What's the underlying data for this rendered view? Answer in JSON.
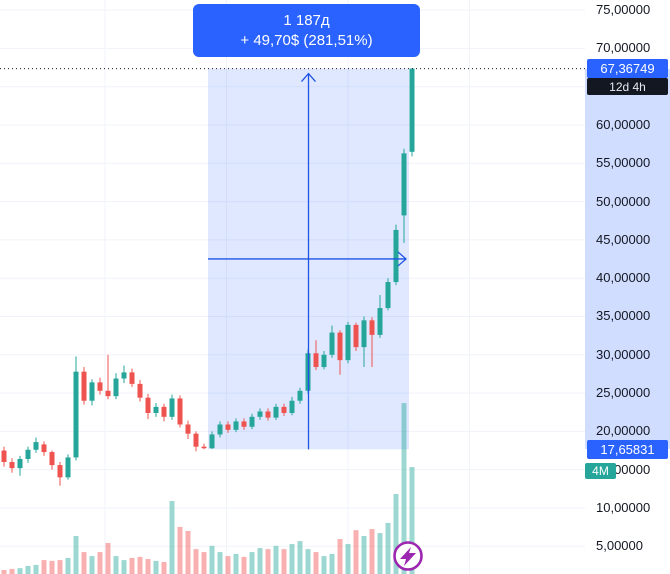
{
  "colors": {
    "up": "#26a69a",
    "down": "#ef5350",
    "vol_up": "rgba(38,166,154,0.45)",
    "vol_down": "rgba(239,83,80,0.45)",
    "accent": "#2962ff",
    "measure_fill": "rgba(41,98,255,0.15)",
    "measure_line": "#1e53e5",
    "grid": "#f0f3fa",
    "axis_text": "#131722",
    "last_price_line": "#131722",
    "countdown_bg": "#131722",
    "volume_badge_bg": "#26a69a",
    "flash_purple": "#9c27b0"
  },
  "tooltip": {
    "line1": "1 187д",
    "line2": "+ 49,70$ (281,51%)"
  },
  "price_axis": {
    "labels": [
      "75,00000",
      "70,00000",
      "65,00000",
      "60,00000",
      "55,00000",
      "50,00000",
      "45,00000",
      "40,00000",
      "35,00000",
      "30,00000",
      "25,00000",
      "20,00000",
      "15,00000",
      "10,00000",
      "5,00000"
    ],
    "values": [
      75,
      70,
      65,
      60,
      55,
      50,
      45,
      40,
      35,
      30,
      25,
      20,
      15,
      10,
      5
    ],
    "last_price_badge": {
      "text": "67,36749",
      "value": 67.36749
    },
    "countdown_badge": {
      "text": "12d 4h"
    },
    "measure_badge": {
      "text": "17,65831",
      "value": 17.65831
    },
    "volume_badge": {
      "text": "4M",
      "value_m": 4.0,
      "anchor_price": 15
    }
  },
  "measure_tool": {
    "from_price": 17.65831,
    "to_price": 67.36749,
    "bars_label": "1 187д",
    "change_label": "+ 49,70$ (281,51%)"
  },
  "chart_data": {
    "type": "candlestick+volume",
    "title": "",
    "grid": true,
    "ylim": [
      1.38,
      76.32
    ],
    "x_start": 4,
    "x_step": 8,
    "vertical_gridlines_x": [
      105,
      226.5,
      348,
      469.5
    ],
    "last_price": 67.36749,
    "candles": [
      [
        17.5,
        18.0,
        15.4,
        16.0
      ],
      [
        16.0,
        16.5,
        14.6,
        15.2
      ],
      [
        15.2,
        16.8,
        14.2,
        16.4
      ],
      [
        16.4,
        18.0,
        15.9,
        17.6
      ],
      [
        17.6,
        19.2,
        17.2,
        18.6
      ],
      [
        18.3,
        18.7,
        16.8,
        17.3
      ],
      [
        17.3,
        17.5,
        15.0,
        15.6
      ],
      [
        15.6,
        16.0,
        12.9,
        14.0
      ],
      [
        14.0,
        17.0,
        13.7,
        16.6
      ],
      [
        16.6,
        29.8,
        16.2,
        27.8
      ],
      [
        27.8,
        28.4,
        23.5,
        24.0
      ],
      [
        24.0,
        26.8,
        23.4,
        26.4
      ],
      [
        26.4,
        27.0,
        24.8,
        25.3
      ],
      [
        25.3,
        30.0,
        24.2,
        24.6
      ],
      [
        24.6,
        27.6,
        24.2,
        26.9
      ],
      [
        26.9,
        28.6,
        26.3,
        27.7
      ],
      [
        27.7,
        28.2,
        25.8,
        26.2
      ],
      [
        26.2,
        26.7,
        23.9,
        24.4
      ],
      [
        24.4,
        24.9,
        21.6,
        22.4
      ],
      [
        22.4,
        23.7,
        21.9,
        23.2
      ],
      [
        23.2,
        23.6,
        21.3,
        21.9
      ],
      [
        21.9,
        24.8,
        21.5,
        24.3
      ],
      [
        24.3,
        24.7,
        20.5,
        20.9
      ],
      [
        20.9,
        21.4,
        19.0,
        19.7
      ],
      [
        19.7,
        20.0,
        17.4,
        18.0
      ],
      [
        18.0,
        18.4,
        17.66,
        17.8
      ],
      [
        17.8,
        20.0,
        17.7,
        19.6
      ],
      [
        19.6,
        21.3,
        19.2,
        20.9
      ],
      [
        20.9,
        21.3,
        19.8,
        20.2
      ],
      [
        20.2,
        21.7,
        19.9,
        21.3
      ],
      [
        21.3,
        21.7,
        20.2,
        20.6
      ],
      [
        20.6,
        22.3,
        20.3,
        21.9
      ],
      [
        21.9,
        23.0,
        21.5,
        22.6
      ],
      [
        22.6,
        23.0,
        21.4,
        21.8
      ],
      [
        21.8,
        23.6,
        21.5,
        23.2
      ],
      [
        23.2,
        23.6,
        22.0,
        22.4
      ],
      [
        22.4,
        24.5,
        22.1,
        24.0
      ],
      [
        24.0,
        25.7,
        23.6,
        25.3
      ],
      [
        25.3,
        30.7,
        24.9,
        30.2
      ],
      [
        30.2,
        31.9,
        28.0,
        28.4
      ],
      [
        28.4,
        30.5,
        28.1,
        30.0
      ],
      [
        30.0,
        33.8,
        29.6,
        32.9
      ],
      [
        32.9,
        33.2,
        27.4,
        29.3
      ],
      [
        29.3,
        34.3,
        28.9,
        33.9
      ],
      [
        33.9,
        34.2,
        30.5,
        31.0
      ],
      [
        31.0,
        35.0,
        28.4,
        34.5
      ],
      [
        34.5,
        34.9,
        28.4,
        32.6
      ],
      [
        32.6,
        37.8,
        32.2,
        36.1
      ],
      [
        36.1,
        40.0,
        35.8,
        39.5
      ],
      [
        39.5,
        47.0,
        39.1,
        46.3
      ],
      [
        48.2,
        56.9,
        44.6,
        56.3
      ],
      [
        56.5,
        67.4,
        55.9,
        67.36749
      ]
    ],
    "volumes_m": [
      0.15,
      0.19,
      0.22,
      0.3,
      0.34,
      0.52,
      0.49,
      0.52,
      0.6,
      1.42,
      0.82,
      0.67,
      0.82,
      1.16,
      0.67,
      0.52,
      0.6,
      0.64,
      0.56,
      0.49,
      0.45,
      2.73,
      1.76,
      1.61,
      0.93,
      0.82,
      1.05,
      0.82,
      0.67,
      0.75,
      0.64,
      0.82,
      0.97,
      0.93,
      1.05,
      0.93,
      1.12,
      1.23,
      0.93,
      0.82,
      0.67,
      0.75,
      1.31,
      1.12,
      1.64,
      1.42,
      1.68,
      1.53,
      1.91,
      2.99,
      6.39,
      4.0
    ]
  },
  "measure_box": {
    "x_from": 208,
    "x_to": 409
  }
}
